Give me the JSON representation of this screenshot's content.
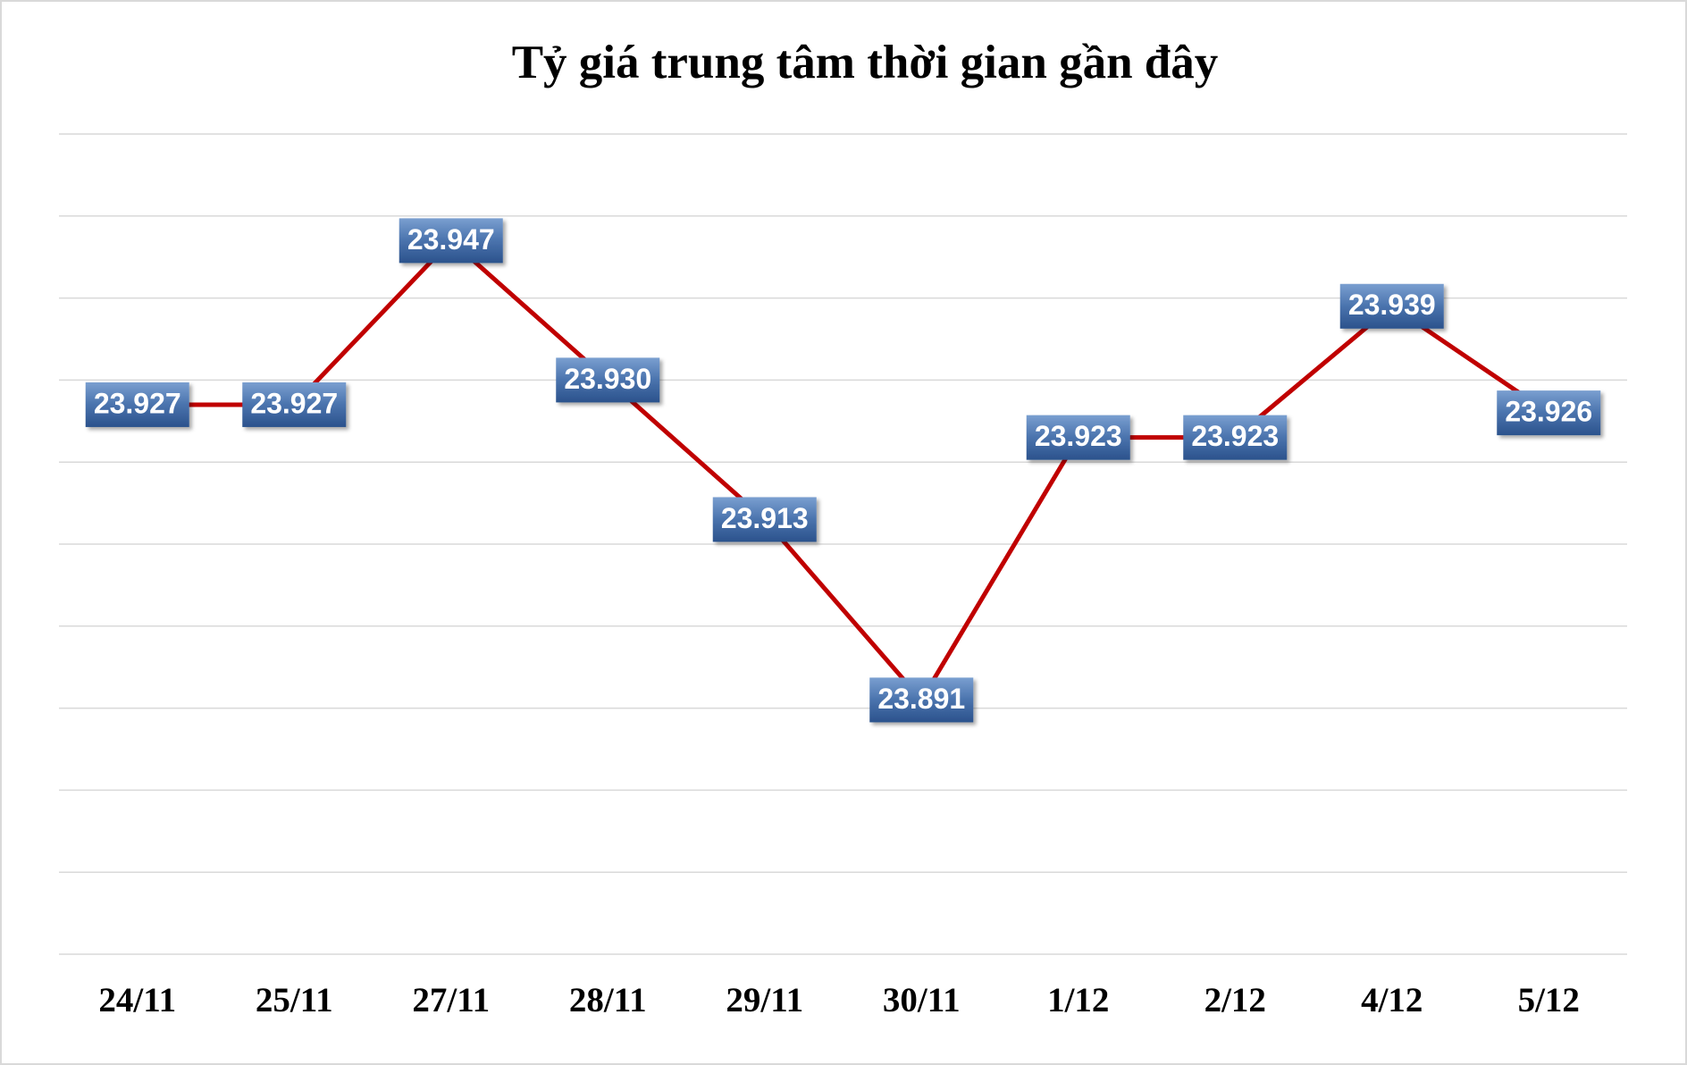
{
  "chart_data": {
    "type": "line",
    "title": "Tỷ giá trung tâm thời gian gần đây",
    "categories": [
      "24/11",
      "25/11",
      "27/11",
      "28/11",
      "29/11",
      "30/11",
      "1/12",
      "2/12",
      "4/12",
      "5/12"
    ],
    "series": [
      {
        "color": "#c00000",
        "values": [
          23927,
          23927,
          23947,
          23930,
          23913,
          23891,
          23923,
          23923,
          23939,
          23926
        ],
        "value_labels": [
          "23.927",
          "23.927",
          "23.947",
          "23.930",
          "23.913",
          "23.891",
          "23.923",
          "23.923",
          "23.939",
          "23.926"
        ]
      }
    ],
    "ylim": [
      23860,
      23960
    ],
    "yticks": [
      23860,
      23870,
      23880,
      23890,
      23900,
      23910,
      23920,
      23930,
      23940,
      23950,
      23960
    ],
    "grid": true
  }
}
